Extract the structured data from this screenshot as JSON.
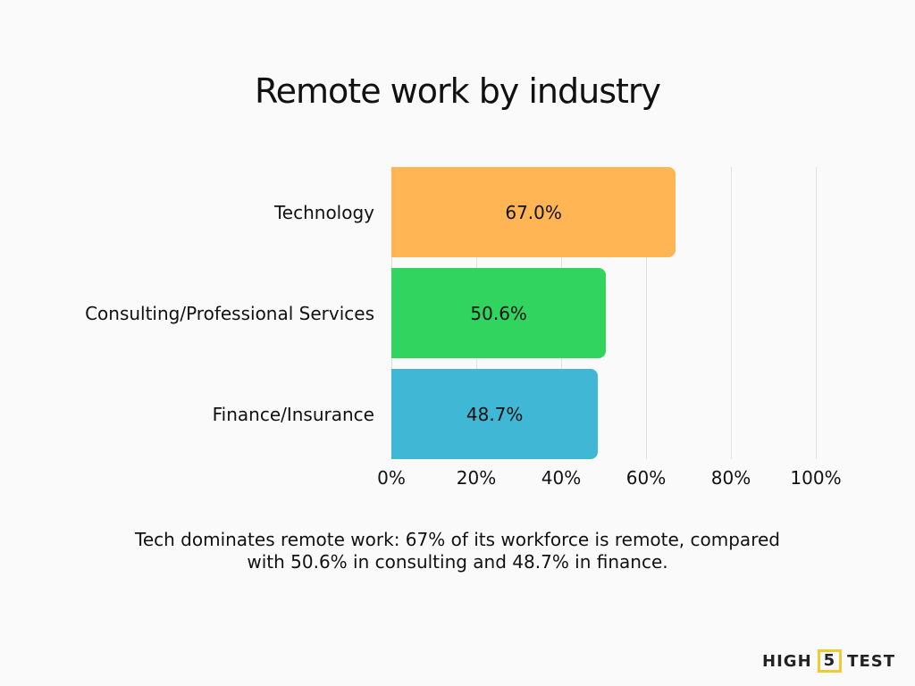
{
  "title": "Remote work by industry",
  "caption_line1": "Tech dominates remote work: 67% of its workforce is remote, compared",
  "caption_line2": "with 50.6% in consulting and 48.7% in finance.",
  "brand": {
    "left": "HIGH",
    "middle": "5",
    "right": "TEST",
    "accent": "#f2c933"
  },
  "chart_data": {
    "type": "bar",
    "orientation": "horizontal",
    "title": "Remote work by industry",
    "categories": [
      "Technology",
      "Consulting/Professional Services",
      "Finance/Insurance"
    ],
    "values": [
      67.0,
      50.6,
      48.7
    ],
    "labels": [
      "67.0%",
      "50.6%",
      "48.7%"
    ],
    "colors": [
      "#ffb554",
      "#30d45f",
      "#41b7d6"
    ],
    "xlabel": "",
    "ylabel": "",
    "xlim": [
      0,
      100
    ],
    "ticks": [
      "0%",
      "20%",
      "40%",
      "60%",
      "80%",
      "100%"
    ],
    "grid": true,
    "legend": false
  }
}
